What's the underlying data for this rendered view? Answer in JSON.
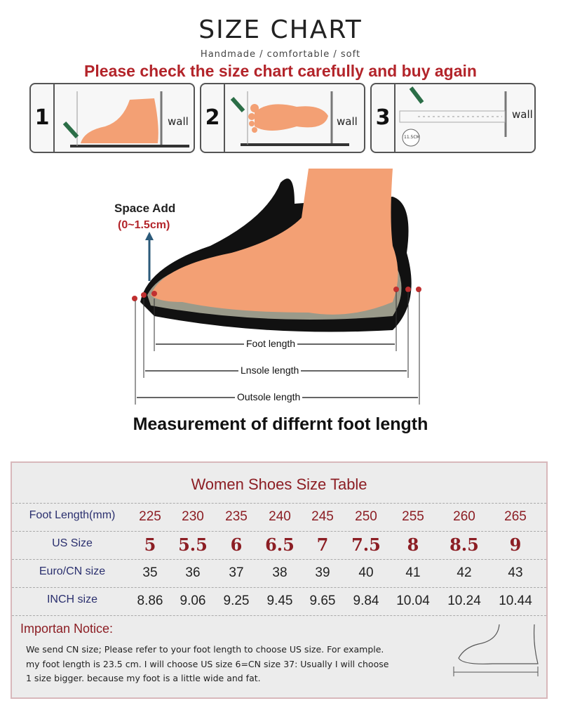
{
  "header": {
    "title": "SIZE CHART",
    "subtitle": "Handmade / comfortable / soft",
    "warning": "Please check the size chart carefully and buy again"
  },
  "steps": [
    {
      "number": "1",
      "wall": "wall"
    },
    {
      "number": "2",
      "wall": "wall"
    },
    {
      "number": "3",
      "wall": "wall",
      "marker": "11.5CM"
    }
  ],
  "illustration": {
    "space_add": "Space Add",
    "space_range": "(0~1.5cm)",
    "foot_length": "Foot length",
    "insole_length": "Lnsole length",
    "outsole_length": "Outsole length"
  },
  "measurement_title": "Measurement of differnt foot length",
  "colors": {
    "accent": "#b3242a",
    "table_label": "#2a2f6e",
    "foot": "#f3a074"
  },
  "table": {
    "title": "Women Shoes Size Table",
    "rows": [
      {
        "label": "Foot Length(mm)",
        "values": [
          "225",
          "230",
          "235",
          "240",
          "245",
          "250",
          "255",
          "260",
          "265"
        ]
      },
      {
        "label": "US Size",
        "values": [
          "5",
          "5.5",
          "6",
          "6.5",
          "7",
          "7.5",
          "8",
          "8.5",
          "9"
        ]
      },
      {
        "label": "Euro/CN size",
        "values": [
          "35",
          "36",
          "37",
          "38",
          "39",
          "40",
          "41",
          "42",
          "43"
        ]
      },
      {
        "label": "INCH size",
        "values": [
          "8.86",
          "9.06",
          "9.25",
          "9.45",
          "9.65",
          "9.84",
          "10.04",
          "10.24",
          "10.44"
        ]
      }
    ]
  },
  "notice": {
    "title": "Importan Notice:",
    "lines": [
      "We send CN size; Please refer to your foot length to choose US size. For example.",
      "my foot length is 23.5 cm.  I will choose US size 6=CN size 37: Usually I will choose",
      "1 size bigger.  because my foot is a little wide and fat."
    ]
  }
}
